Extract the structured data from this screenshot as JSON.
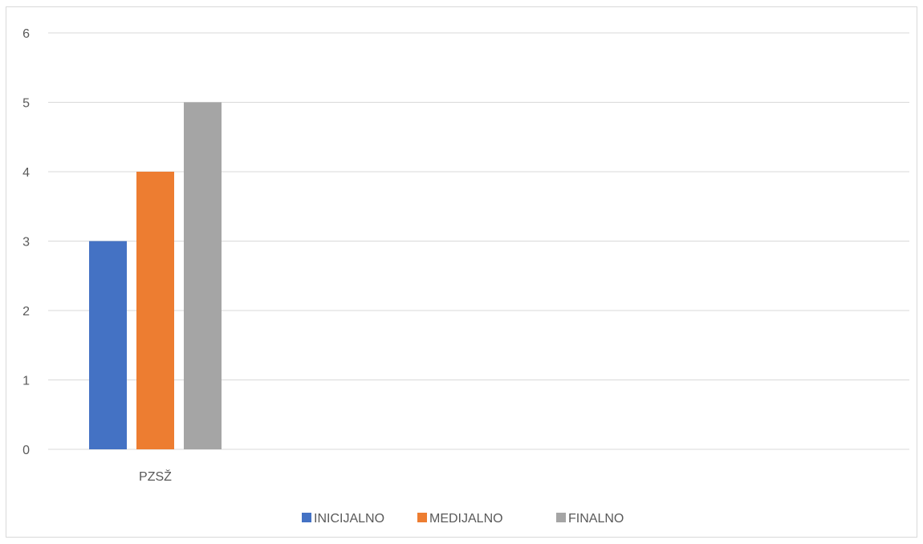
{
  "chart_data": {
    "type": "bar",
    "categories": [
      "PZSŽ"
    ],
    "series": [
      {
        "name": "INICIJALNO",
        "values": [
          3
        ],
        "color": "#4472c4"
      },
      {
        "name": "MEDIJALNO",
        "values": [
          4
        ],
        "color": "#ed7d31"
      },
      {
        "name": "FINALNO",
        "values": [
          5
        ],
        "color": "#a5a5a5"
      }
    ],
    "ylim": [
      0,
      6
    ],
    "yticks": [
      "0",
      "1",
      "2",
      "3",
      "4",
      "5",
      "6"
    ],
    "grid": true,
    "legend": "bottom-center",
    "gridline_color": "#d9d9d9"
  }
}
